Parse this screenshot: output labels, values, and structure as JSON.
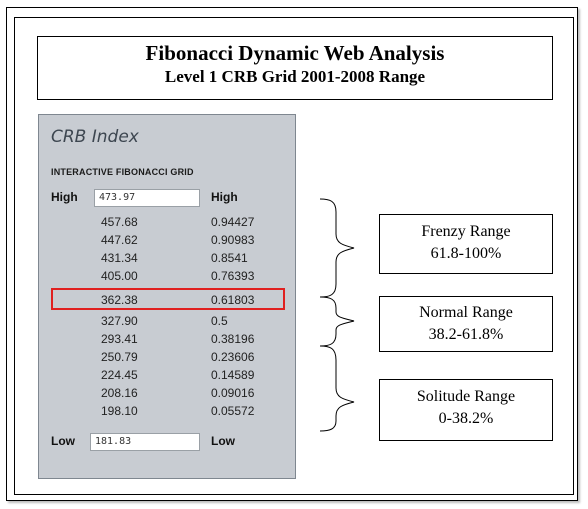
{
  "title": {
    "line1": "Fibonacci Dynamic Web Analysis",
    "line2": "Level 1 CRB Grid 2001-2008 Range"
  },
  "panel": {
    "title": "CRB Index",
    "subtitle": "INTERACTIVE FIBONACCI GRID",
    "high_label": "High",
    "high_value": "473.97",
    "high_right_label": "High",
    "low_label": "Low",
    "low_value": "181.83",
    "low_right_label": "Low",
    "rows": [
      {
        "price": "457.68",
        "ratio": "0.94427"
      },
      {
        "price": "447.62",
        "ratio": "0.90983"
      },
      {
        "price": "431.34",
        "ratio": "0.8541"
      },
      {
        "price": "405.00",
        "ratio": "0.76393"
      },
      {
        "price": "362.38",
        "ratio": "0.61803"
      },
      {
        "price": "327.90",
        "ratio": "0.5"
      },
      {
        "price": "293.41",
        "ratio": "0.38196"
      },
      {
        "price": "250.79",
        "ratio": "0.23606"
      },
      {
        "price": "224.45",
        "ratio": "0.14589"
      },
      {
        "price": "208.16",
        "ratio": "0.09016"
      },
      {
        "price": "198.10",
        "ratio": "0.05572"
      }
    ]
  },
  "ranges": [
    {
      "name": "Frenzy Range",
      "span": "61.8-100%"
    },
    {
      "name": "Normal Range",
      "span": "38.2-61.8%"
    },
    {
      "name": "Solitude Range",
      "span": "0-38.2%"
    }
  ],
  "colors": {
    "panel_bg": "#c8ccd2",
    "highlight": "#e02020"
  }
}
